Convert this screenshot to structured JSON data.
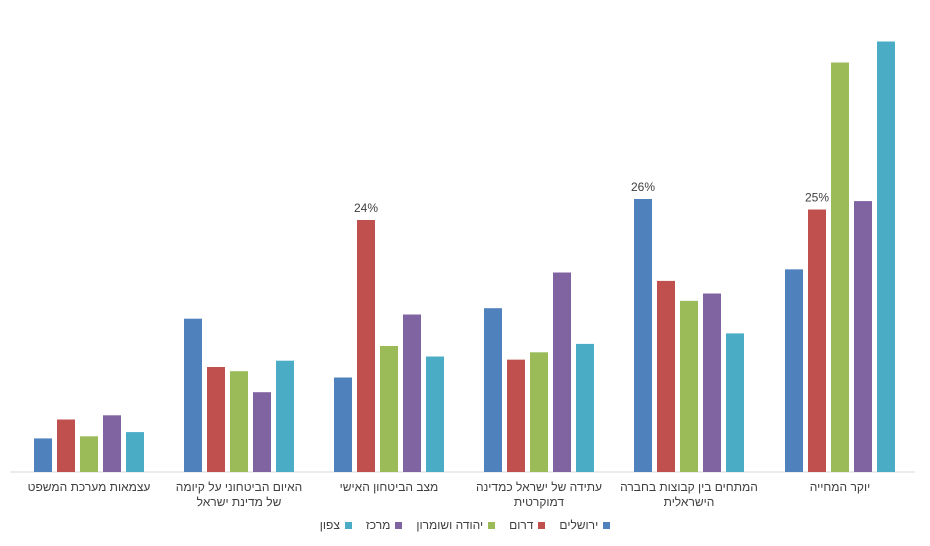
{
  "chart_data": {
    "type": "bar",
    "title": "",
    "xlabel": "",
    "ylabel": "",
    "ylim": [
      0,
      40
    ],
    "grid": false,
    "legend_position": "bottom",
    "categories": [
      "עצמאות מערכת המשפט",
      "האיום הביטחוני על קיומה של מדינת ישראל",
      "מצב הביטחון האישי",
      "עתידה של ישראל כמדינה דמוקרטית",
      "המתחים בין קבוצות בחברה הישראלית",
      "יוקר המחייה"
    ],
    "series": [
      {
        "name": "ירושלים",
        "color": "#4F81BD",
        "values": [
          3.2,
          14.6,
          9.0,
          15.6,
          26.0,
          19.3
        ]
      },
      {
        "name": "דרום",
        "color": "#C0504D",
        "values": [
          5.0,
          10.0,
          24.0,
          10.7,
          18.2,
          25.0
        ]
      },
      {
        "name": "יהודה ושומרון",
        "color": "#9BBB59",
        "values": [
          3.4,
          9.6,
          12.0,
          11.4,
          16.3,
          39.0
        ]
      },
      {
        "name": "מרכז",
        "color": "#8064A2",
        "values": [
          5.4,
          7.6,
          15.0,
          19.0,
          17.0,
          25.8
        ]
      },
      {
        "name": "צפון",
        "color": "#4BACC6",
        "values": [
          3.8,
          10.6,
          11.0,
          12.2,
          13.2,
          41.0
        ]
      }
    ],
    "annotations": [
      {
        "category_index": 2,
        "series_index": 1,
        "text": "24%"
      },
      {
        "category_index": 4,
        "series_index": 0,
        "text": "26%"
      },
      {
        "category_index": 5,
        "series_index": 1,
        "text": "25%"
      }
    ]
  }
}
